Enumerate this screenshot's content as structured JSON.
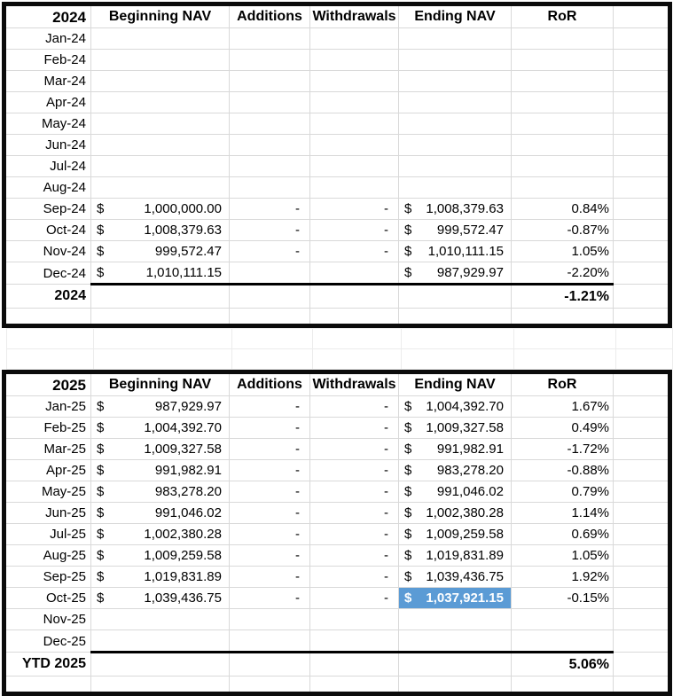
{
  "colors": {
    "selected_cell_bg": "#5b9bd5",
    "selected_cell_text": "#ffffff",
    "gridline": "#d9d9d9",
    "table_border": "#000000"
  },
  "currency_symbol": "$",
  "tables": [
    {
      "year_label": "2024",
      "headers": {
        "beginning_nav": "Beginning NAV",
        "additions": "Additions",
        "withdrawals": "Withdrawals",
        "ending_nav": "Ending NAV",
        "ror": "RoR"
      },
      "rows": [
        {
          "month": "Jan-24",
          "beginning_nav": "",
          "additions": "",
          "withdrawals": "",
          "ending_nav": "",
          "ror": "",
          "selected": false
        },
        {
          "month": "Feb-24",
          "beginning_nav": "",
          "additions": "",
          "withdrawals": "",
          "ending_nav": "",
          "ror": "",
          "selected": false
        },
        {
          "month": "Mar-24",
          "beginning_nav": "",
          "additions": "",
          "withdrawals": "",
          "ending_nav": "",
          "ror": "",
          "selected": false
        },
        {
          "month": "Apr-24",
          "beginning_nav": "",
          "additions": "",
          "withdrawals": "",
          "ending_nav": "",
          "ror": "",
          "selected": false
        },
        {
          "month": "May-24",
          "beginning_nav": "",
          "additions": "",
          "withdrawals": "",
          "ending_nav": "",
          "ror": "",
          "selected": false
        },
        {
          "month": "Jun-24",
          "beginning_nav": "",
          "additions": "",
          "withdrawals": "",
          "ending_nav": "",
          "ror": "",
          "selected": false
        },
        {
          "month": "Jul-24",
          "beginning_nav": "",
          "additions": "",
          "withdrawals": "",
          "ending_nav": "",
          "ror": "",
          "selected": false
        },
        {
          "month": "Aug-24",
          "beginning_nav": "",
          "additions": "",
          "withdrawals": "",
          "ending_nav": "",
          "ror": "",
          "selected": false
        },
        {
          "month": "Sep-24",
          "beginning_nav": "1,000,000.00",
          "additions": "-",
          "withdrawals": "-",
          "ending_nav": "1,008,379.63",
          "ror": "0.84%",
          "selected": false
        },
        {
          "month": "Oct-24",
          "beginning_nav": "1,008,379.63",
          "additions": "-",
          "withdrawals": "-",
          "ending_nav": "999,572.47",
          "ror": "-0.87%",
          "selected": false
        },
        {
          "month": "Nov-24",
          "beginning_nav": "999,572.47",
          "additions": "-",
          "withdrawals": "-",
          "ending_nav": "1,010,111.15",
          "ror": "1.05%",
          "selected": false
        },
        {
          "month": "Dec-24",
          "beginning_nav": "1,010,111.15",
          "additions": "",
          "withdrawals": "",
          "ending_nav": "987,929.97",
          "ror": "-2.20%",
          "selected": false
        }
      ],
      "total_label": "2024",
      "total_ror": "-1.21%"
    },
    {
      "year_label": "2025",
      "headers": {
        "beginning_nav": "Beginning NAV",
        "additions": "Additions",
        "withdrawals": "Withdrawals",
        "ending_nav": "Ending NAV",
        "ror": "RoR"
      },
      "rows": [
        {
          "month": "Jan-25",
          "beginning_nav": "987,929.97",
          "additions": "-",
          "withdrawals": "-",
          "ending_nav": "1,004,392.70",
          "ror": "1.67%",
          "selected": false
        },
        {
          "month": "Feb-25",
          "beginning_nav": "1,004,392.70",
          "additions": "-",
          "withdrawals": "-",
          "ending_nav": "1,009,327.58",
          "ror": "0.49%",
          "selected": false
        },
        {
          "month": "Mar-25",
          "beginning_nav": "1,009,327.58",
          "additions": "-",
          "withdrawals": "-",
          "ending_nav": "991,982.91",
          "ror": "-1.72%",
          "selected": false
        },
        {
          "month": "Apr-25",
          "beginning_nav": "991,982.91",
          "additions": "-",
          "withdrawals": "-",
          "ending_nav": "983,278.20",
          "ror": "-0.88%",
          "selected": false
        },
        {
          "month": "May-25",
          "beginning_nav": "983,278.20",
          "additions": "-",
          "withdrawals": "-",
          "ending_nav": "991,046.02",
          "ror": "0.79%",
          "selected": false
        },
        {
          "month": "Jun-25",
          "beginning_nav": "991,046.02",
          "additions": "-",
          "withdrawals": "-",
          "ending_nav": "1,002,380.28",
          "ror": "1.14%",
          "selected": false
        },
        {
          "month": "Jul-25",
          "beginning_nav": "1,002,380.28",
          "additions": "-",
          "withdrawals": "-",
          "ending_nav": "1,009,259.58",
          "ror": "0.69%",
          "selected": false
        },
        {
          "month": "Aug-25",
          "beginning_nav": "1,009,259.58",
          "additions": "-",
          "withdrawals": "-",
          "ending_nav": "1,019,831.89",
          "ror": "1.05%",
          "selected": false
        },
        {
          "month": "Sep-25",
          "beginning_nav": "1,019,831.89",
          "additions": "-",
          "withdrawals": "-",
          "ending_nav": "1,039,436.75",
          "ror": "1.92%",
          "selected": false
        },
        {
          "month": "Oct-25",
          "beginning_nav": "1,039,436.75",
          "additions": "-",
          "withdrawals": "-",
          "ending_nav": "1,037,921.15",
          "ror": "-0.15%",
          "selected": true
        },
        {
          "month": "Nov-25",
          "beginning_nav": "",
          "additions": "",
          "withdrawals": "",
          "ending_nav": "",
          "ror": "",
          "selected": false
        },
        {
          "month": "Dec-25",
          "beginning_nav": "",
          "additions": "",
          "withdrawals": "",
          "ending_nav": "",
          "ror": "",
          "selected": false
        }
      ],
      "total_label": "YTD 2025",
      "total_ror": "5.06%"
    }
  ]
}
